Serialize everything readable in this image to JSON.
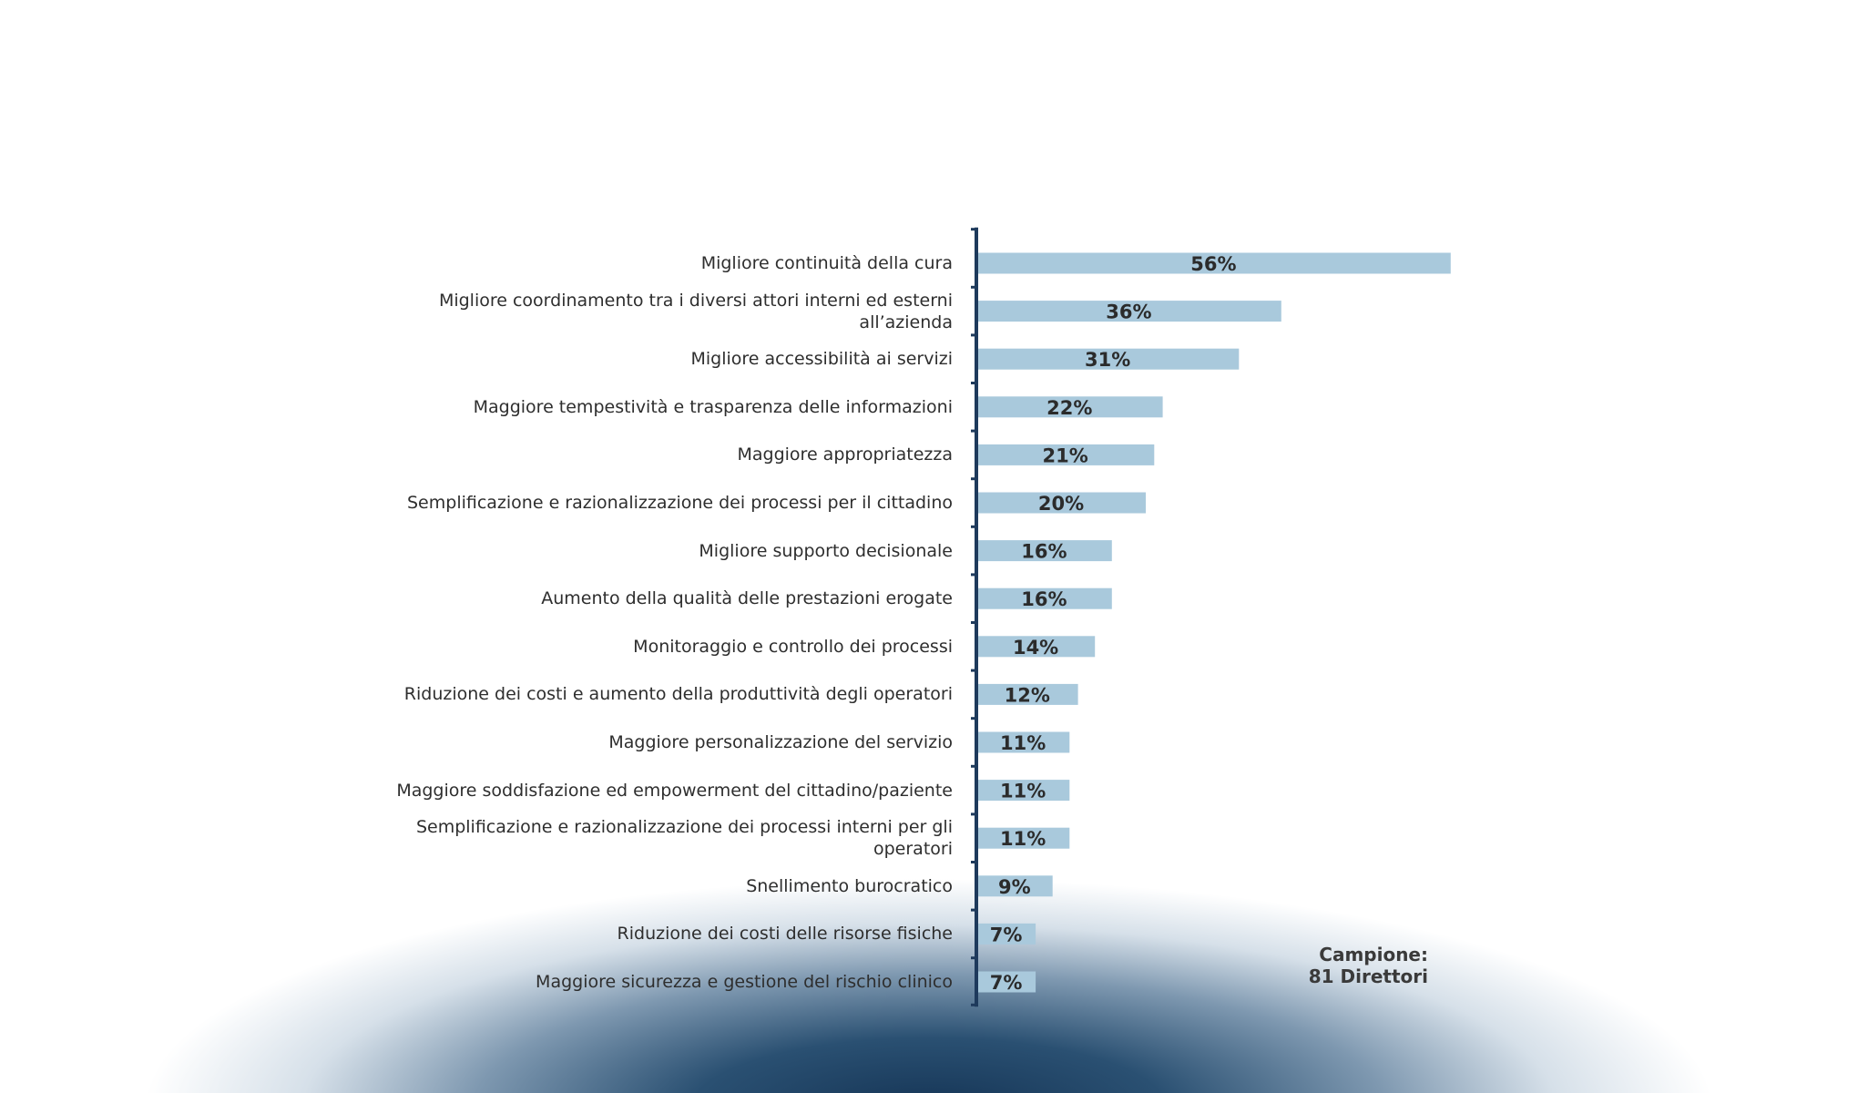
{
  "chart_data": {
    "type": "bar",
    "orientation": "horizontal",
    "categories": [
      "Migliore continuità della cura",
      "Migliore coordinamento tra i diversi attori interni ed esterni all’azienda",
      "Migliore accessibilità ai servizi",
      "Maggiore tempestività e trasparenza delle informazioni",
      "Maggiore appropriatezza",
      "Semplificazione e razionalizzazione dei processi per il cittadino",
      "Migliore supporto decisionale",
      "Aumento della qualità delle prestazioni erogate",
      "Monitoraggio e controllo dei processi",
      "Riduzione dei costi e aumento della produttività degli operatori",
      "Maggiore personalizzazione del servizio",
      "Maggiore soddisfazione ed empowerment del cittadino/paziente",
      "Semplificazione e razionalizzazione dei processi interni per gli operatori",
      "Snellimento burocratico",
      "Riduzione dei costi delle risorse fisiche",
      "Maggiore sicurezza e gestione del rischio clinico"
    ],
    "values": [
      56,
      36,
      31,
      22,
      21,
      20,
      16,
      16,
      14,
      12,
      11,
      11,
      11,
      9,
      7,
      7
    ],
    "value_labels": [
      "56%",
      "36%",
      "31%",
      "22%",
      "21%",
      "20%",
      "16%",
      "16%",
      "14%",
      "12%",
      "11%",
      "11%",
      "11%",
      "9%",
      "7%",
      "7%"
    ],
    "unit": "%",
    "xlim": [
      0,
      56
    ],
    "grid": false,
    "legend": "none",
    "bar_color": "#a9c9dc",
    "axis_color": "#1e3a5c"
  },
  "annotation": {
    "line1": "Campione:",
    "line2": "81 Direttori"
  }
}
